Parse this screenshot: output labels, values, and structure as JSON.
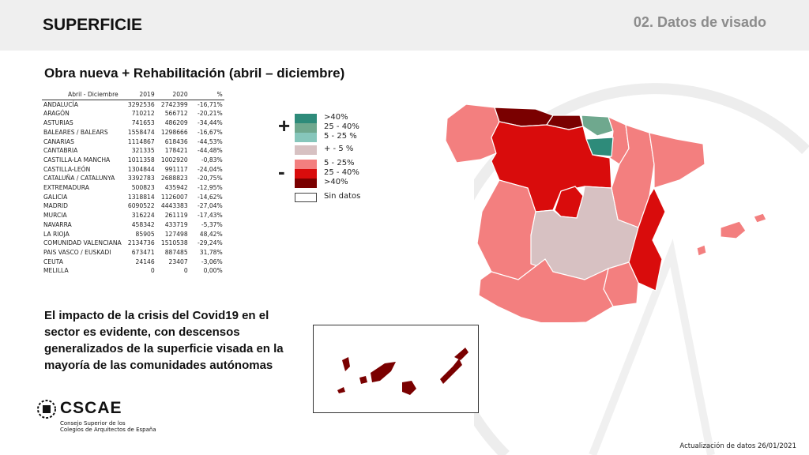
{
  "header": {
    "title": "SUPERFICIE",
    "section": "02. Datos de visado"
  },
  "subtitle": "Obra nueva + Rehabilitación (abril – diciembre)",
  "table": {
    "columns": [
      "Abril - Diciembre",
      "2019",
      "2020",
      "%"
    ],
    "rows": [
      [
        "ANDALUCÍA",
        "3292536",
        "2742399",
        "-16,71%"
      ],
      [
        "ARAGÓN",
        "710212",
        "566712",
        "-20,21%"
      ],
      [
        "ASTURIAS",
        "741653",
        "486209",
        "-34,44%"
      ],
      [
        "BALEARES / BALEARS",
        "1558474",
        "1298666",
        "-16,67%"
      ],
      [
        "CANARIAS",
        "1114867",
        "618436",
        "-44,53%"
      ],
      [
        "CANTABRIA",
        "321335",
        "178421",
        "-44,48%"
      ],
      [
        "CASTILLA-LA MANCHA",
        "1011358",
        "1002920",
        "-0,83%"
      ],
      [
        "CASTILLA-LEÓN",
        "1304844",
        "991117",
        "-24,04%"
      ],
      [
        "CATALUÑA / CATALUNYA",
        "3392783",
        "2688823",
        "-20,75%"
      ],
      [
        "EXTREMADURA",
        "500823",
        "435942",
        "-12,95%"
      ],
      [
        "GALICIA",
        "1318814",
        "1126007",
        "-14,62%"
      ],
      [
        "MADRID",
        "6090522",
        "4443383",
        "-27,04%"
      ],
      [
        "MURCIA",
        "316224",
        "261119",
        "-17,43%"
      ],
      [
        "NAVARRA",
        "458342",
        "433719",
        "-5,37%"
      ],
      [
        "LA RIOJA",
        "85905",
        "127498",
        "48,42%"
      ],
      [
        "COMUNIDAD VALENCIANA",
        "2134736",
        "1510538",
        "-29,24%"
      ],
      [
        "PAIS VASCO / EUSKADI",
        "673471",
        "887485",
        "31,78%"
      ],
      [
        "CEUTA",
        "24146",
        "23407",
        "-3,06%"
      ],
      [
        "MELILLA",
        "0",
        "0",
        "0,00%"
      ]
    ]
  },
  "legend": {
    "plus_sign": "+",
    "minus_sign": "-",
    "items": [
      {
        "label": ">40%",
        "color": "#2e8b7a"
      },
      {
        "label": "25 - 40%",
        "color": "#6fa88e"
      },
      {
        "label": "5 - 25 %",
        "color": "#86c6bb"
      },
      {
        "label": "+ - 5 %",
        "color": "#d7c1c2"
      },
      {
        "label": "5 - 25%",
        "color": "#f37f7f"
      },
      {
        "label": "25 - 40%",
        "color": "#d90c0c"
      },
      {
        "label": ">40%",
        "color": "#7a0000"
      },
      {
        "label": "Sin datos",
        "color": "#ffffff"
      }
    ]
  },
  "note": "El impacto de la crisis del Covid19 en el sector es evidente, con descensos generalizados de la superficie visada en la mayoría de las comunidades autónomas",
  "logo": {
    "name": "CSCAE",
    "subtitle_line1": "Consejo Superior de los",
    "subtitle_line2": "Colegios de Arquitectos de España"
  },
  "update": "Actualización de datos 26/01/2021",
  "map_colors": {
    "light_red": "#f37f7f",
    "red": "#d90c0c",
    "dark_red": "#7a0000",
    "neutral": "#d7c1c2",
    "teal_mid": "#6fa88e",
    "teal_dark": "#2e8b7a"
  }
}
